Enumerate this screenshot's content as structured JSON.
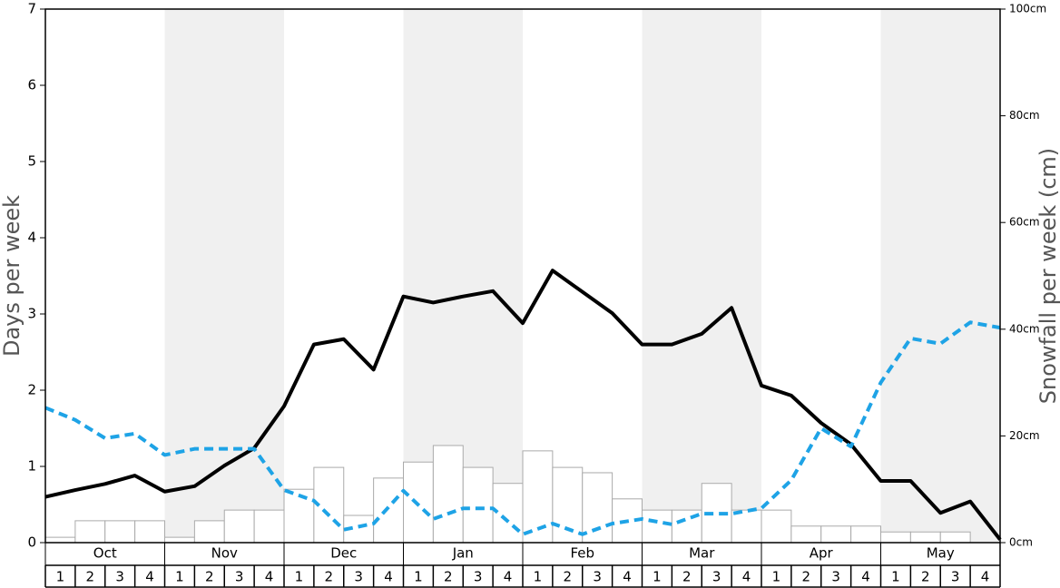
{
  "chart_data": {
    "type": "line",
    "y_label": "Days per week",
    "y2_label": "Snowfall per week (cm)",
    "months": [
      "Oct",
      "Nov",
      "Dec",
      "Jan",
      "Feb",
      "Mar",
      "Apr",
      "May"
    ],
    "weeks": [
      "1",
      "2",
      "3",
      "4"
    ],
    "ylim": [
      0,
      7
    ],
    "yticks": [
      0,
      1,
      2,
      3,
      4,
      5,
      6,
      7
    ],
    "y2lim": [
      0,
      100
    ],
    "y2ticks": [
      {
        "value": 0,
        "label": "0cm"
      },
      {
        "value": 20,
        "label": "20cm"
      },
      {
        "value": 40,
        "label": "40cm"
      },
      {
        "value": 60,
        "label": "60cm"
      },
      {
        "value": 80,
        "label": "80cm"
      },
      {
        "value": 100,
        "label": "100cm"
      }
    ],
    "bars": {
      "axis": "y2",
      "color": "#ffffff",
      "values": [
        1.0,
        4.1,
        4.1,
        4.1,
        1.0,
        4.1,
        6.1,
        6.1,
        10.0,
        14.1,
        5.1,
        12.1,
        15.1,
        18.2,
        14.1,
        11.1,
        17.2,
        14.1,
        13.1,
        8.2,
        6.1,
        6.1,
        11.1,
        6.1,
        6.1,
        3.1,
        3.1,
        3.1,
        2.0,
        2.0,
        2.0,
        0
      ]
    },
    "series": [
      {
        "color": "#000000",
        "dashed": false,
        "values": [
          0.6,
          0.69,
          0.77,
          0.88,
          0.67,
          0.74,
          1.01,
          1.24,
          1.79,
          2.6,
          2.67,
          2.27,
          3.23,
          3.15,
          3.23,
          3.3,
          2.88,
          3.57,
          3.29,
          3.01,
          2.6,
          2.6,
          2.74,
          3.08,
          2.06,
          1.93,
          1.57,
          1.29,
          0.81,
          0.81,
          0.39,
          0.54,
          0.04
        ]
      },
      {
        "color": "#1ea3e6",
        "dashed": true,
        "values": [
          1.77,
          1.61,
          1.37,
          1.43,
          1.15,
          1.23,
          1.23,
          1.23,
          0.69,
          0.55,
          0.17,
          0.25,
          0.68,
          0.31,
          0.45,
          0.45,
          0.11,
          0.25,
          0.11,
          0.25,
          0.31,
          0.24,
          0.38,
          0.38,
          0.45,
          0.82,
          1.5,
          1.26,
          2.1,
          2.68,
          2.61,
          2.89,
          2.82
        ]
      }
    ]
  }
}
